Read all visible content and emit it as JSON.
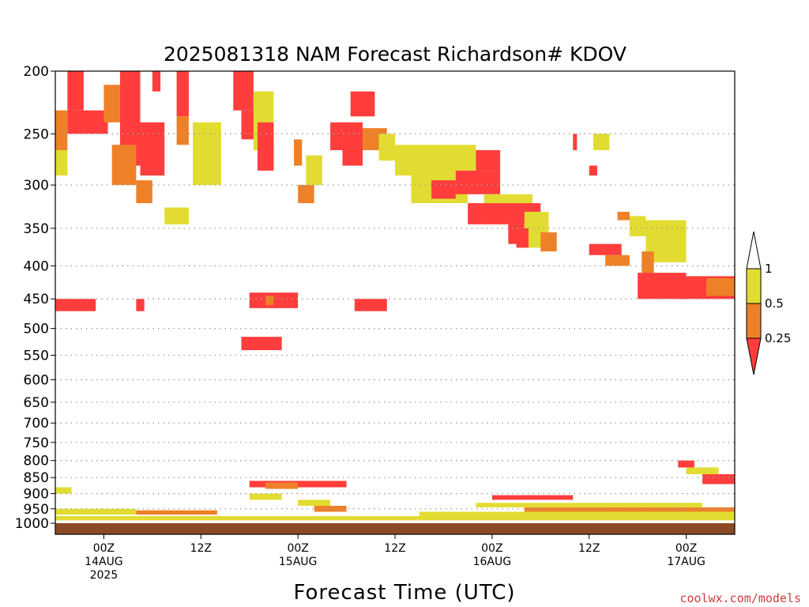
{
  "chart_data": {
    "type": "heatmap",
    "title": "2025081318 NAM Forecast Richardson# KDOV",
    "xlabel": "Forecast Time (UTC)",
    "credit": "coolwx.com/models",
    "x_unit": "forecast hours from 2025081318",
    "xlim": [
      0,
      84
    ],
    "ylim_hPa": [
      1000,
      200
    ],
    "y_scale": "log",
    "grid": true,
    "y_ticks": [
      200,
      250,
      300,
      350,
      400,
      450,
      500,
      550,
      600,
      650,
      700,
      750,
      800,
      850,
      900,
      950,
      1000
    ],
    "x_ticks": [
      {
        "hour": 6,
        "lines": [
          "00Z",
          "14AUG",
          "2025"
        ]
      },
      {
        "hour": 18,
        "lines": [
          "12Z"
        ]
      },
      {
        "hour": 30,
        "lines": [
          "00Z",
          "15AUG"
        ]
      },
      {
        "hour": 42,
        "lines": [
          "12Z"
        ]
      },
      {
        "hour": 54,
        "lines": [
          "00Z",
          "16AUG"
        ]
      },
      {
        "hour": 66,
        "lines": [
          "12Z"
        ]
      },
      {
        "hour": 78,
        "lines": [
          "00Z",
          "17AUG"
        ]
      }
    ],
    "colorbar": {
      "placement": "right",
      "levels": [
        "1",
        "0.5",
        "0.25"
      ],
      "colors": {
        "lt_0.25": "#ff3d3d",
        "0.25_0.5": "#ee8128",
        "0.5_1": "#e2dc32",
        "ge_1": "#ffffff"
      }
    },
    "ground_color": "#8b4a25",
    "regions": [
      {
        "h": [
          1.5,
          3.5
        ],
        "p": [
          200,
          230
        ],
        "c": 1
      },
      {
        "h": [
          1.5,
          6.5
        ],
        "p": [
          230,
          250
        ],
        "c": 1
      },
      {
        "h": [
          0,
          1.5
        ],
        "p": [
          230,
          265
        ],
        "c": 2
      },
      {
        "h": [
          0,
          1.5
        ],
        "p": [
          265,
          290
        ],
        "c": 3
      },
      {
        "h": [
          6,
          8
        ],
        "p": [
          210,
          240
        ],
        "c": 2
      },
      {
        "h": [
          8,
          10.5
        ],
        "p": [
          200,
          280
        ],
        "c": 1
      },
      {
        "h": [
          10.5,
          13.5
        ],
        "p": [
          240,
          290
        ],
        "c": 1
      },
      {
        "h": [
          7,
          10
        ],
        "p": [
          260,
          300
        ],
        "c": 2
      },
      {
        "h": [
          12,
          13
        ],
        "p": [
          200,
          215
        ],
        "c": 1
      },
      {
        "h": [
          15,
          16.5
        ],
        "p": [
          200,
          235
        ],
        "c": 1
      },
      {
        "h": [
          15,
          16.5
        ],
        "p": [
          235,
          260
        ],
        "c": 2
      },
      {
        "h": [
          10,
          12
        ],
        "p": [
          295,
          320
        ],
        "c": 2
      },
      {
        "h": [
          13.5,
          16.5
        ],
        "p": [
          325,
          345
        ],
        "c": 3
      },
      {
        "h": [
          17,
          20.5
        ],
        "p": [
          240,
          300
        ],
        "c": 3
      },
      {
        "h": [
          22,
          24.5
        ],
        "p": [
          200,
          230
        ],
        "c": 1
      },
      {
        "h": [
          23,
          25
        ],
        "p": [
          230,
          255
        ],
        "c": 1
      },
      {
        "h": [
          24.5,
          27
        ],
        "p": [
          215,
          265
        ],
        "c": 3
      },
      {
        "h": [
          25,
          27
        ],
        "p": [
          240,
          285
        ],
        "c": 1
      },
      {
        "h": [
          29.5,
          30.5
        ],
        "p": [
          255,
          280
        ],
        "c": 2
      },
      {
        "h": [
          30,
          32
        ],
        "p": [
          300,
          320
        ],
        "c": 2
      },
      {
        "h": [
          31,
          33
        ],
        "p": [
          270,
          300
        ],
        "c": 3
      },
      {
        "h": [
          34,
          35.5
        ],
        "p": [
          240,
          265
        ],
        "c": 1
      },
      {
        "h": [
          35.5,
          38
        ],
        "p": [
          240,
          280
        ],
        "c": 1
      },
      {
        "h": [
          36.5,
          39.5
        ],
        "p": [
          215,
          235
        ],
        "c": 1
      },
      {
        "h": [
          38,
          41
        ],
        "p": [
          245,
          265
        ],
        "c": 2
      },
      {
        "h": [
          40,
          42
        ],
        "p": [
          250,
          275
        ],
        "c": 3
      },
      {
        "h": [
          42,
          52
        ],
        "p": [
          260,
          290
        ],
        "c": 3
      },
      {
        "h": [
          44,
          51
        ],
        "p": [
          290,
          320
        ],
        "c": 3
      },
      {
        "h": [
          46.5,
          49.5
        ],
        "p": [
          295,
          315
        ],
        "c": 1
      },
      {
        "h": [
          49.5,
          55
        ],
        "p": [
          285,
          310
        ],
        "c": 1
      },
      {
        "h": [
          52,
          55
        ],
        "p": [
          265,
          285
        ],
        "c": 1
      },
      {
        "h": [
          53,
          59
        ],
        "p": [
          310,
          345
        ],
        "c": 3
      },
      {
        "h": [
          51,
          60
        ],
        "p": [
          320,
          345
        ],
        "c": 1
      },
      {
        "h": [
          56,
          58
        ],
        "p": [
          345,
          370
        ],
        "c": 1
      },
      {
        "h": [
          58,
          61
        ],
        "p": [
          330,
          375
        ],
        "c": 3
      },
      {
        "h": [
          57,
          58.5
        ],
        "p": [
          350,
          375
        ],
        "c": 1
      },
      {
        "h": [
          60,
          62
        ],
        "p": [
          355,
          380
        ],
        "c": 2
      },
      {
        "h": [
          64,
          64.5
        ],
        "p": [
          250,
          265
        ],
        "c": 1
      },
      {
        "h": [
          66.5,
          68.5
        ],
        "p": [
          250,
          265
        ],
        "c": 3
      },
      {
        "h": [
          66,
          67
        ],
        "p": [
          280,
          290
        ],
        "c": 1
      },
      {
        "h": [
          69.5,
          71
        ],
        "p": [
          330,
          340
        ],
        "c": 2
      },
      {
        "h": [
          71,
          73
        ],
        "p": [
          335,
          360
        ],
        "c": 3
      },
      {
        "h": [
          73,
          78
        ],
        "p": [
          340,
          395
        ],
        "c": 3
      },
      {
        "h": [
          72.5,
          74
        ],
        "p": [
          380,
          410
        ],
        "c": 2
      },
      {
        "h": [
          72,
          78
        ],
        "p": [
          410,
          450
        ],
        "c": 1
      },
      {
        "h": [
          77,
          84
        ],
        "p": [
          415,
          450
        ],
        "c": 1
      },
      {
        "h": [
          80.5,
          84
        ],
        "p": [
          418,
          445
        ],
        "c": 2
      },
      {
        "h": [
          66,
          70
        ],
        "p": [
          370,
          385
        ],
        "c": 1
      },
      {
        "h": [
          68,
          71
        ],
        "p": [
          385,
          400
        ],
        "c": 2
      },
      {
        "h": [
          0,
          5
        ],
        "p": [
          450,
          470
        ],
        "c": 1
      },
      {
        "h": [
          10,
          11
        ],
        "p": [
          450,
          470
        ],
        "c": 1
      },
      {
        "h": [
          24,
          30
        ],
        "p": [
          440,
          465
        ],
        "c": 1
      },
      {
        "h": [
          26,
          27
        ],
        "p": [
          445,
          460
        ],
        "c": 2
      },
      {
        "h": [
          37,
          41
        ],
        "p": [
          450,
          470
        ],
        "c": 1
      },
      {
        "h": [
          23,
          28
        ],
        "p": [
          515,
          540
        ],
        "c": 1
      },
      {
        "h": [
          77,
          79
        ],
        "p": [
          800,
          820
        ],
        "c": 1
      },
      {
        "h": [
          78,
          82
        ],
        "p": [
          820,
          840
        ],
        "c": 3
      },
      {
        "h": [
          80,
          84
        ],
        "p": [
          840,
          870
        ],
        "c": 1
      },
      {
        "h": [
          24,
          36
        ],
        "p": [
          860,
          880
        ],
        "c": 1
      },
      {
        "h": [
          26,
          30
        ],
        "p": [
          865,
          885
        ],
        "c": 2
      },
      {
        "h": [
          24,
          28
        ],
        "p": [
          900,
          920
        ],
        "c": 3
      },
      {
        "h": [
          32,
          36
        ],
        "p": [
          940,
          960
        ],
        "c": 2
      },
      {
        "h": [
          30,
          34
        ],
        "p": [
          920,
          940
        ],
        "c": 3
      },
      {
        "h": [
          0,
          2
        ],
        "p": [
          880,
          900
        ],
        "c": 3
      },
      {
        "h": [
          0,
          84
        ],
        "p": [
          975,
          990
        ],
        "c": 3
      },
      {
        "h": [
          45,
          84
        ],
        "p": [
          960,
          975
        ],
        "c": 3
      },
      {
        "h": [
          58,
          84
        ],
        "p": [
          945,
          960
        ],
        "c": 2
      },
      {
        "h": [
          0,
          10
        ],
        "p": [
          950,
          970
        ],
        "c": 3
      },
      {
        "h": [
          10,
          20
        ],
        "p": [
          955,
          970
        ],
        "c": 2
      },
      {
        "h": [
          52,
          80
        ],
        "p": [
          930,
          945
        ],
        "c": 3
      },
      {
        "h": [
          54,
          64
        ],
        "p": [
          905,
          920
        ],
        "c": 1
      }
    ]
  }
}
